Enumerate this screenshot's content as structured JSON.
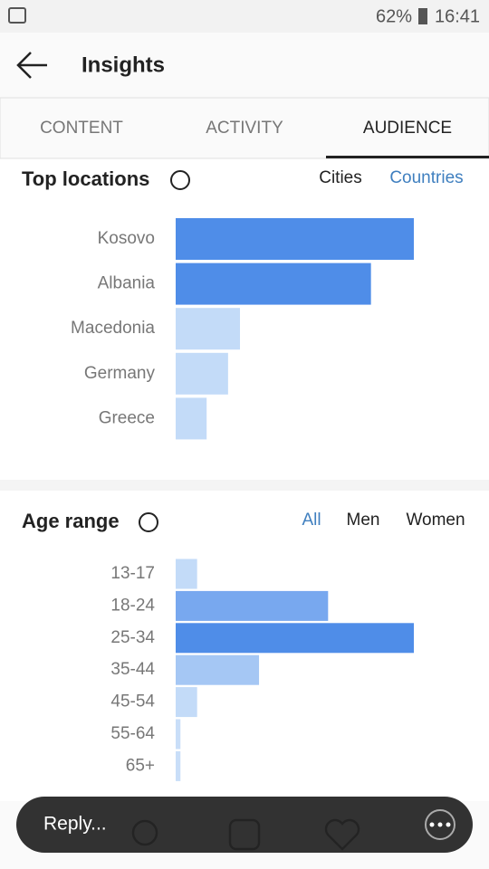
{
  "status_bar": {
    "battery": "62%",
    "time": "16:41"
  },
  "header": {
    "title": "Insights"
  },
  "tabs": [
    "CONTENT",
    "ACTIVITY",
    "AUDIENCE"
  ],
  "chart_data": [
    {
      "type": "bar",
      "title": "Top locations",
      "toggles": [
        "Cities",
        "Countries"
      ],
      "categories": [
        "Kosovo",
        "Albania",
        "Macedonia",
        "Germany",
        "Greece"
      ],
      "values": [
        100,
        82,
        27,
        22,
        13
      ],
      "colors": [
        "#4f8de8",
        "#4f8de8",
        "#c3dbf8",
        "#c3dbf8",
        "#c3dbf8"
      ],
      "xlim": [
        0,
        100
      ]
    },
    {
      "type": "bar",
      "title": "Age range",
      "toggles": [
        "All",
        "Men",
        "Women"
      ],
      "categories": [
        "13-17",
        "18-24",
        "25-34",
        "35-44",
        "45-54",
        "55-64",
        "65+"
      ],
      "values": [
        9,
        64,
        100,
        35,
        9,
        2,
        2
      ],
      "colors": [
        "#c3dbf8",
        "#78a8ef",
        "#4f8de8",
        "#a5c7f4",
        "#c3dbf8",
        "#c9def8",
        "#c9def8"
      ],
      "xlim": [
        0,
        100
      ]
    }
  ],
  "reply": {
    "placeholder": "Reply..."
  }
}
